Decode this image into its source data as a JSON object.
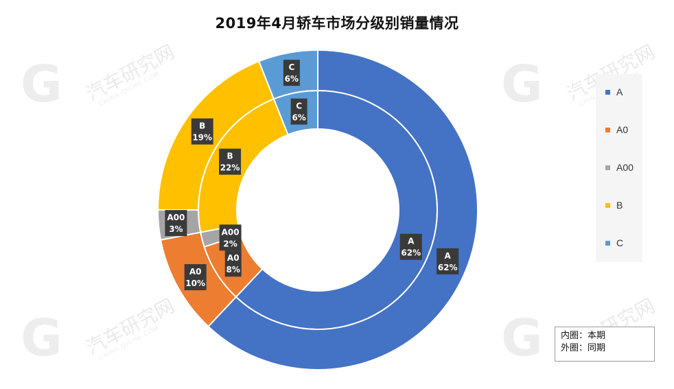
{
  "title": "2019年4月轿车市场分级别销量情况",
  "chart_data": {
    "type": "donut",
    "title": "2019年4月轿车市场分级别销量情况",
    "categories": [
      "A",
      "A0",
      "A00",
      "B",
      "C"
    ],
    "colors": [
      "#4472C4",
      "#ED7D31",
      "#A5A5A5",
      "#FFC000",
      "#5B9BD5"
    ],
    "series": [
      {
        "name": "本期",
        "ring": "inner",
        "values": [
          62,
          8,
          2,
          22,
          6
        ],
        "labels": [
          "A\n62%",
          "A0\n8%",
          "A00\n2%",
          "B\n22%",
          "C\n6%"
        ]
      },
      {
        "name": "同期",
        "ring": "outer",
        "values": [
          62,
          10,
          3,
          19,
          6
        ],
        "labels": [
          "A\n62%",
          "A0\n10%",
          "A00\n3%",
          "B\n19%",
          "C\n6%"
        ]
      }
    ],
    "legend": {
      "position": "right",
      "items": [
        "A",
        "A0",
        "A00",
        "B",
        "C"
      ]
    }
  },
  "note": {
    "line1": "内圈：本期",
    "line2": "外圈：同期"
  },
  "watermark": {
    "text": "汽车研究网",
    "sub": "CHINA-QICHE.COM",
    "logo_icon": "qiche-logo-icon"
  }
}
